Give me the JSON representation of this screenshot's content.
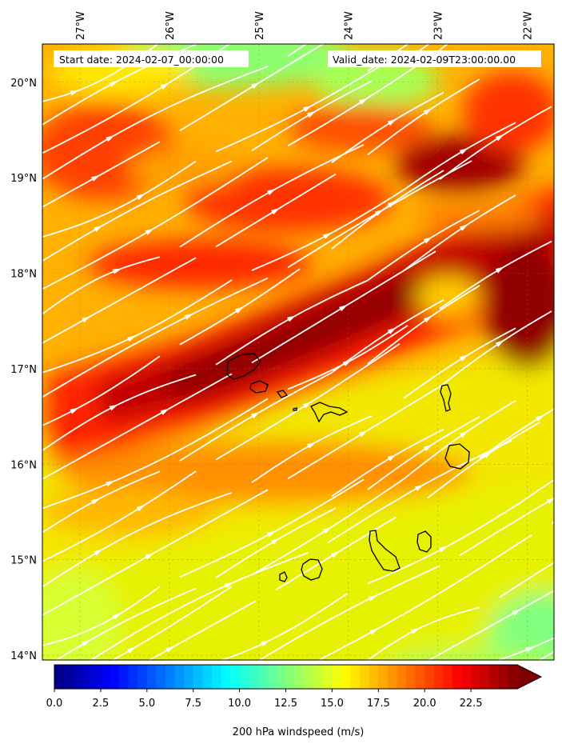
{
  "map": {
    "start_label": "Start date: 2024-02-07_00:00:00",
    "valid_label": "Valid_date: 2024-02-09T23:00:00.00",
    "lon_ticks": [
      {
        "value": -27,
        "label": "27°W"
      },
      {
        "value": -26,
        "label": "26°W"
      },
      {
        "value": -25,
        "label": "25°W"
      },
      {
        "value": -24,
        "label": "24°W"
      },
      {
        "value": -23,
        "label": "23°W"
      },
      {
        "value": -22,
        "label": "22°W"
      }
    ],
    "lat_ticks": [
      {
        "value": 20,
        "label": "20°N"
      },
      {
        "value": 19,
        "label": "19°N"
      },
      {
        "value": 18,
        "label": "18°N"
      },
      {
        "value": 17,
        "label": "17°N"
      },
      {
        "value": 16,
        "label": "16°N"
      },
      {
        "value": 15,
        "label": "15°N"
      },
      {
        "value": 14,
        "label": "14°N"
      }
    ],
    "lon_range": [
      -27.42,
      -21.7
    ],
    "lat_range": [
      13.95,
      20.4
    ],
    "field": "wind speed, 200 hPa",
    "overlay": "white streamlines with arrows",
    "wind_direction": "from south-west to north-east",
    "islands": "Cape Verde archipelago (black coastlines)"
  },
  "colorbar": {
    "label": "200 hPa windspeed (m/s)",
    "ticks": [
      "0.0",
      "2.5",
      "5.0",
      "7.5",
      "10.0",
      "12.5",
      "15.0",
      "17.5",
      "20.0",
      "22.5"
    ],
    "min": 0,
    "max": 25,
    "colormap": "jet",
    "extend": "max"
  }
}
